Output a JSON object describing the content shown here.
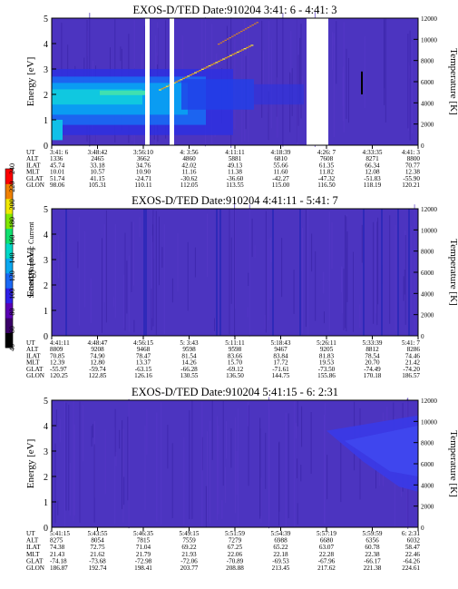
{
  "chart_data": {
    "type": "heatmap",
    "colorbar": {
      "label": "Second Harmonic Current",
      "ticks": [
        "40",
        "60",
        "80",
        "100",
        "120",
        "140",
        "160",
        "180",
        "200",
        "220",
        "240"
      ],
      "colors": [
        "#000000",
        "#3a0068",
        "#5a00b4",
        "#2e20e8",
        "#1a68f4",
        "#0aa8f0",
        "#00d8c8",
        "#10e070",
        "#80e800",
        "#f0e800",
        "#f08000",
        "#ff0000"
      ]
    },
    "panels": [
      {
        "title": "EXOS-D/TED   Date:910204   3:41: 6 - 4:41: 3",
        "ylabel": "Energy [eV]",
        "y2label": "Temperature [K]",
        "yticks": [
          "0",
          "1",
          "2",
          "3",
          "4",
          "5"
        ],
        "y2ticks": [
          "0",
          "2000",
          "4000",
          "6000",
          "8000",
          "10000",
          "12000"
        ],
        "rows": [
          [
            "UT",
            "3:41: 6",
            "3:48:42",
            "3:56:10",
            "4: 3:56",
            "4:11:11",
            "4:18:39",
            "4:26: 7",
            "4:33:35",
            "4:41: 3"
          ],
          [
            "ALT",
            "1336",
            "2465",
            "3662",
            "4860",
            "5881",
            "6810",
            "7608",
            "8271",
            "8800"
          ],
          [
            "ILAT",
            "45.74",
            "33.18",
            "34.76",
            "42.02",
            "49.13",
            "55.66",
            "61.35",
            "66.34",
            "70.77"
          ],
          [
            "MLT",
            "10.01",
            "10.57",
            "10.90",
            "11.16",
            "11.38",
            "11.60",
            "11.82",
            "12.08",
            "12.38"
          ],
          [
            "GLAT",
            "51.74",
            "41.15",
            "-24.71",
            "-30.62",
            "-36.60",
            "-42.27",
            "-47.32",
            "-51.83",
            "-55.90"
          ],
          [
            "GLON",
            "98.06",
            "105.31",
            "110.11",
            "112.05",
            "113.55",
            "115.00",
            "116.50",
            "118.19",
            "120.21"
          ]
        ]
      },
      {
        "title": "EXOS-D/TED   Date:910204   4:41:11 - 5:41: 7",
        "ylabel": "Energy [eV]",
        "y2label": "Temperature [K]",
        "yticks": [
          "0",
          "1",
          "2",
          "3",
          "4",
          "5"
        ],
        "y2ticks": [
          "0",
          "2000",
          "4000",
          "6000",
          "8000",
          "10000",
          "12000"
        ],
        "rows": [
          [
            "UT",
            "4:41:11",
            "4:48:47",
            "4:56:15",
            "5: 3:43",
            "5:11:11",
            "5:18:43",
            "5:26:11",
            "5:33:39",
            "5:41: 7"
          ],
          [
            "ALT",
            "8809",
            "9208",
            "9468",
            "9598",
            "9598",
            "9467",
            "9205",
            "8812",
            "8286"
          ],
          [
            "ILAT",
            "70.85",
            "74.90",
            "78.47",
            "81.54",
            "83.66",
            "83.84",
            "81.83",
            "78.54",
            "74.46"
          ],
          [
            "MLT",
            "12.39",
            "12.80",
            "13.37",
            "14.26",
            "15.70",
            "17.72",
            "19.53",
            "20.70",
            "21.42"
          ],
          [
            "GLAT",
            "-55.97",
            "-59.74",
            "-63.15",
            "-66.28",
            "-69.12",
            "-71.61",
            "-73.50",
            "-74.49",
            "-74.20"
          ],
          [
            "GLON",
            "120.25",
            "122.85",
            "126.16",
            "130.55",
            "136.50",
            "144.75",
            "155.86",
            "170.18",
            "186.57"
          ]
        ]
      },
      {
        "title": "EXOS-D/TED   Date:910204   5:41:15 - 6: 2:31",
        "ylabel": "Energy [eV]",
        "y2label": "Temperature [K]",
        "yticks": [
          "0",
          "1",
          "2",
          "3",
          "4",
          "5"
        ],
        "y2ticks": [
          "0",
          "2000",
          "4000",
          "6000",
          "8000",
          "10000",
          "12000"
        ],
        "rows": [
          [
            "UT",
            "5:41:15",
            "5:43:55",
            "5:46:35",
            "5:49:15",
            "5:51:59",
            "5:54:39",
            "5:57:19",
            "5:59:59",
            "6: 2:31"
          ],
          [
            "ALT",
            "8275",
            "8054",
            "7815",
            "7559",
            "7279",
            "6988",
            "6680",
            "6356",
            "6032"
          ],
          [
            "ILAT",
            "74.38",
            "72.75",
            "71.04",
            "69.22",
            "67.25",
            "65.22",
            "63.07",
            "60.78",
            "58.47"
          ],
          [
            "MLT",
            "21.43",
            "21.62",
            "21.79",
            "21.93",
            "22.06",
            "22.18",
            "22.28",
            "22.38",
            "22.46"
          ],
          [
            "GLAT",
            "-74.18",
            "-73.68",
            "-72.98",
            "-72.06",
            "-70.89",
            "-69.53",
            "-67.96",
            "-66.17",
            "-64.26"
          ],
          [
            "GLON",
            "186.87",
            "192.74",
            "198.41",
            "203.77",
            "208.88",
            "213.45",
            "217.62",
            "221.38",
            "224.61"
          ]
        ]
      }
    ]
  }
}
